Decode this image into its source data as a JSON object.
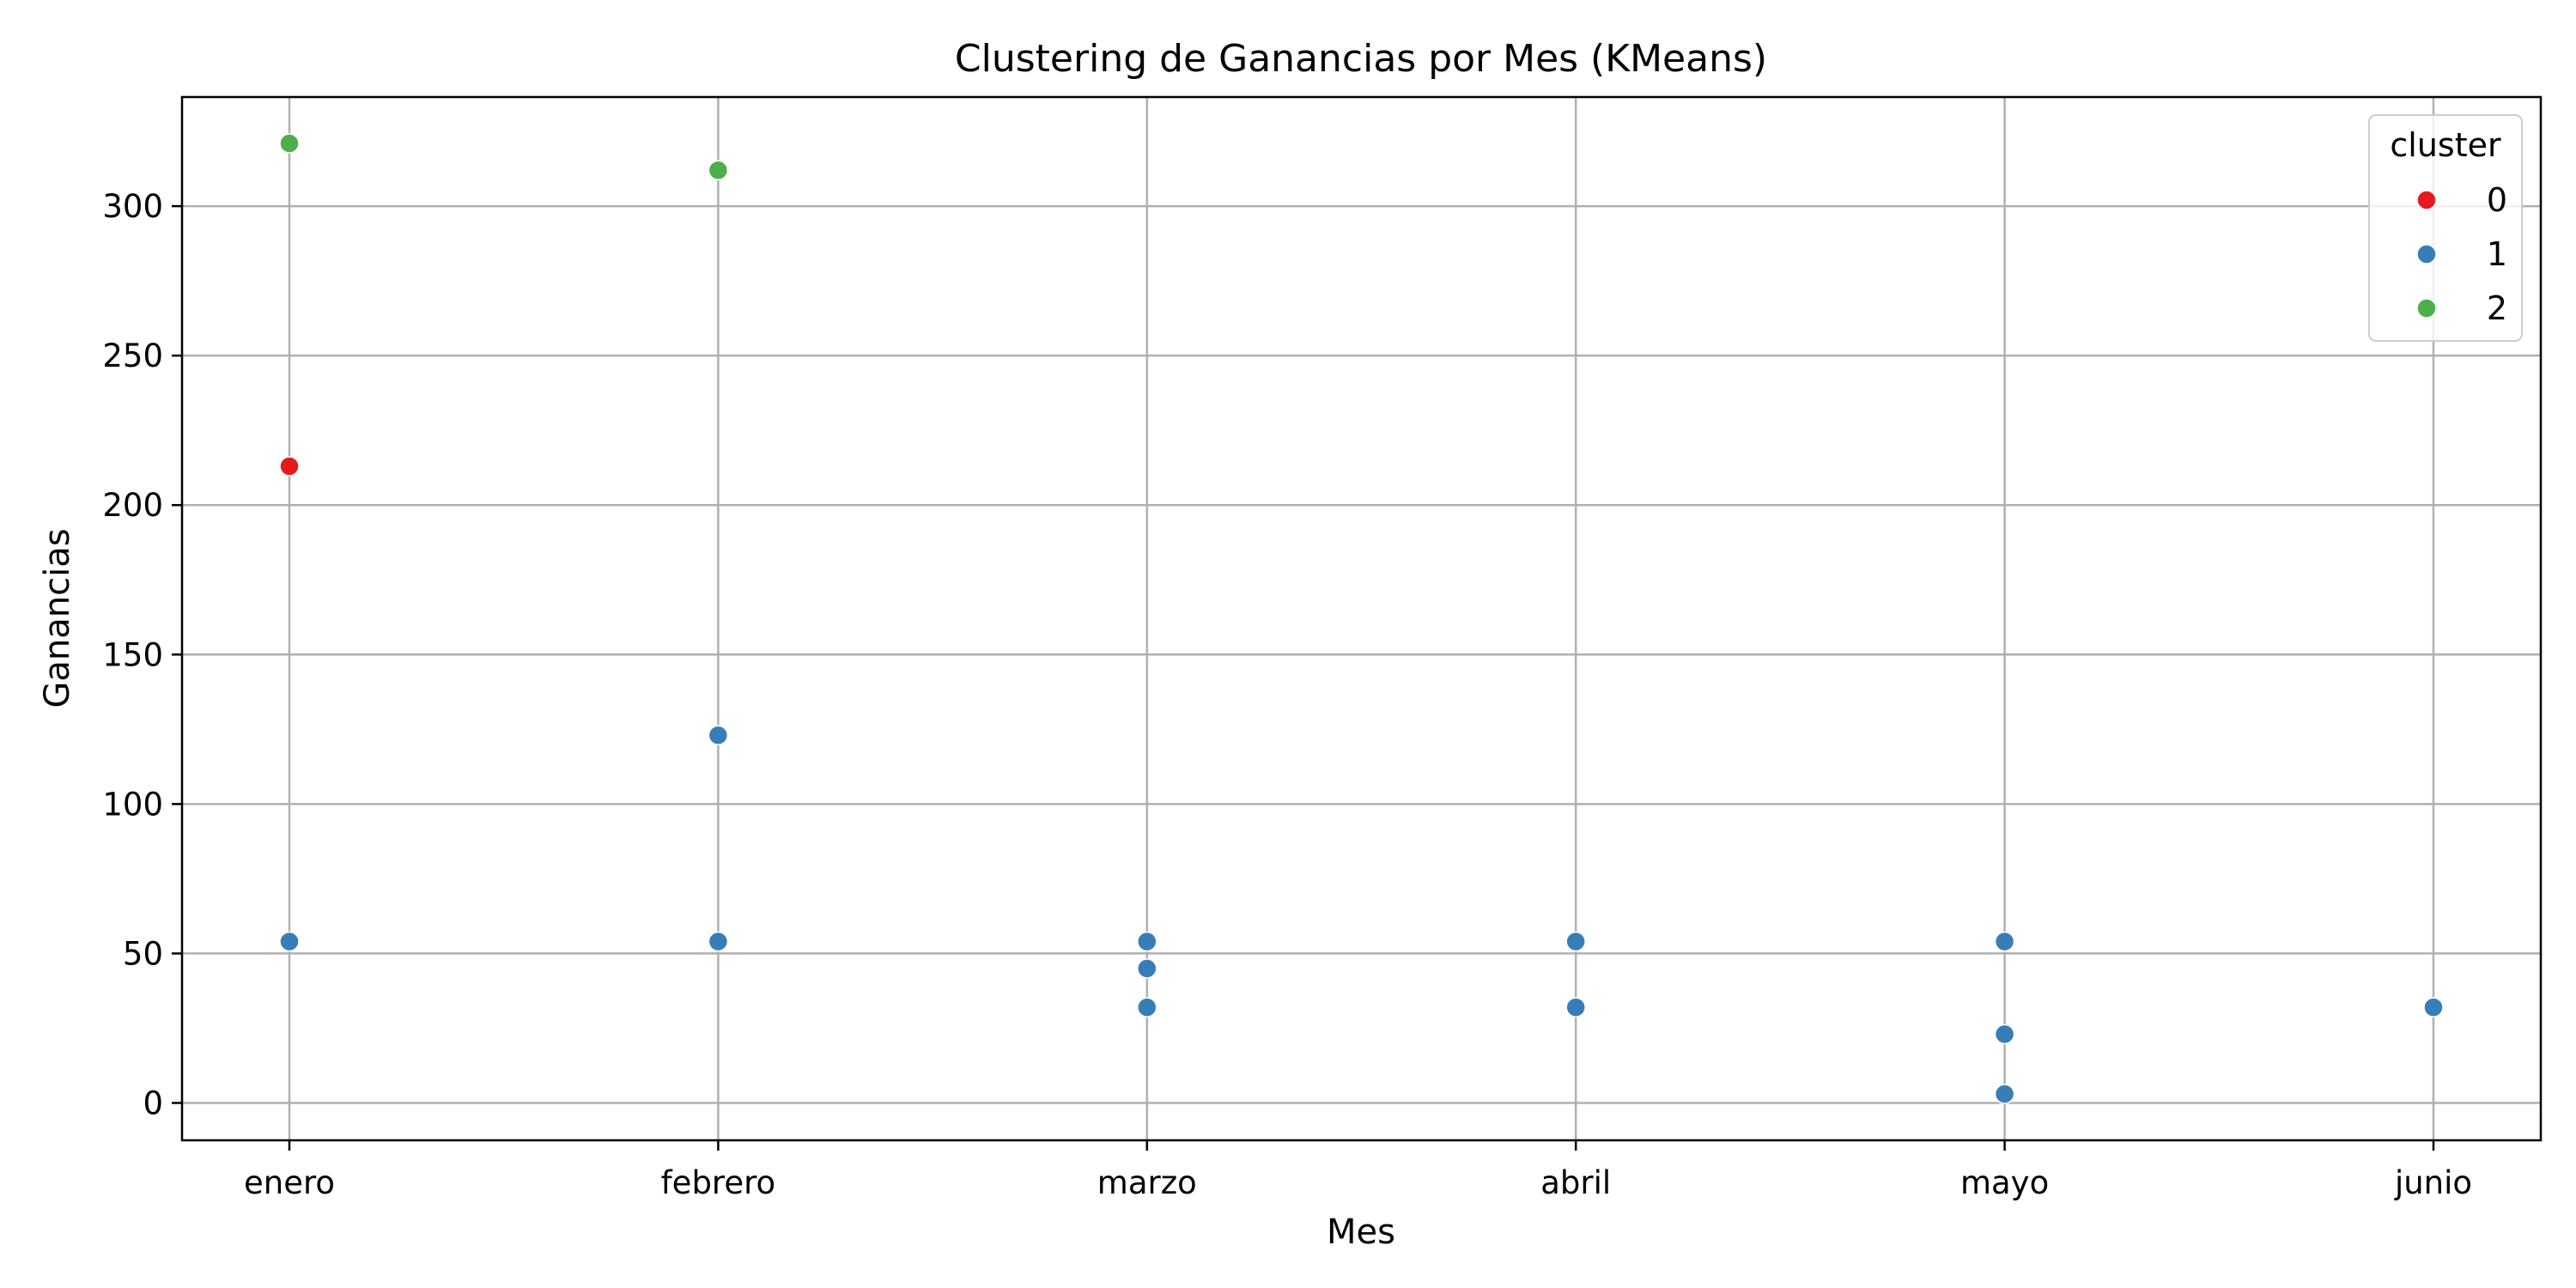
{
  "chart_data": {
    "type": "scatter",
    "title": "Clustering de Ganancias por Mes (KMeans)",
    "xlabel": "Mes",
    "ylabel": "Ganancias",
    "categories": [
      "enero",
      "febrero",
      "marzo",
      "abril",
      "mayo",
      "junio"
    ],
    "ylim": [
      -12.5,
      336.5
    ],
    "yticks": [
      0,
      50,
      100,
      150,
      200,
      250,
      300
    ],
    "grid": true,
    "legend": {
      "title": "cluster",
      "position": "top-right",
      "entries": [
        {
          "label": "0",
          "color": "#e41a1c"
        },
        {
          "label": "1",
          "color": "#377eb8"
        },
        {
          "label": "2",
          "color": "#4daf4a"
        }
      ]
    },
    "series": [
      {
        "name": "0",
        "color": "#e41a1c",
        "points": [
          {
            "x": "enero",
            "y": 213
          }
        ]
      },
      {
        "name": "1",
        "color": "#377eb8",
        "points": [
          {
            "x": "enero",
            "y": 54
          },
          {
            "x": "febrero",
            "y": 123
          },
          {
            "x": "febrero",
            "y": 54
          },
          {
            "x": "marzo",
            "y": 54
          },
          {
            "x": "marzo",
            "y": 45
          },
          {
            "x": "marzo",
            "y": 32
          },
          {
            "x": "abril",
            "y": 54
          },
          {
            "x": "abril",
            "y": 32
          },
          {
            "x": "mayo",
            "y": 54
          },
          {
            "x": "mayo",
            "y": 23
          },
          {
            "x": "mayo",
            "y": 3
          },
          {
            "x": "junio",
            "y": 32
          }
        ]
      },
      {
        "name": "2",
        "color": "#4daf4a",
        "points": [
          {
            "x": "enero",
            "y": 321
          },
          {
            "x": "febrero",
            "y": 312
          }
        ]
      }
    ]
  }
}
